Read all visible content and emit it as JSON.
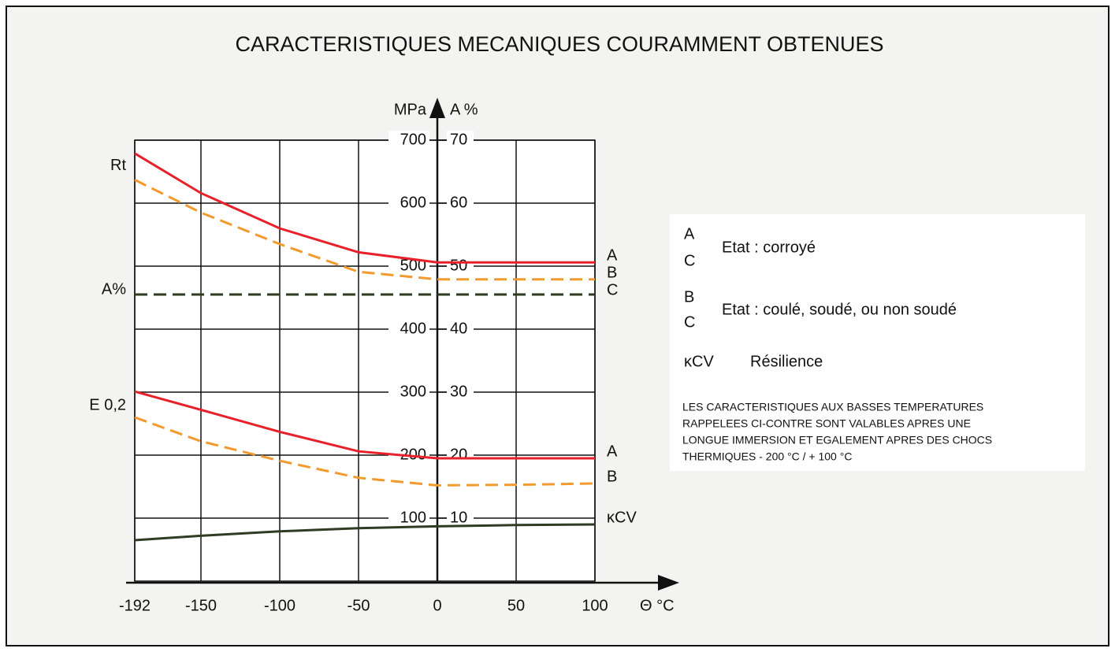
{
  "chart_data": {
    "type": "line",
    "title": "CARACTERISTIQUES MECANIQUES COURAMMENT OBTENUES",
    "y_label": "MPa",
    "y2_label": "A %",
    "x_label": "Θ °C",
    "x": [
      -192,
      -150,
      -100,
      -50,
      0,
      50,
      100
    ],
    "xlim": [
      -192,
      100
    ],
    "xticks": [
      -192,
      -150,
      -100,
      -50,
      0,
      50,
      100
    ],
    "ylim": [
      0,
      700
    ],
    "yticks": [
      100,
      200,
      300,
      400,
      500,
      600,
      700
    ],
    "y2lim": [
      0,
      70
    ],
    "y2ticks": [
      10,
      20,
      30,
      40,
      50,
      60,
      70
    ],
    "grid": true,
    "curve_labels": [
      "Rt",
      "A%",
      "E 0,2"
    ],
    "series": [
      {
        "name": "A",
        "color": "#e8202a",
        "dash": false,
        "values": [
          679,
          616,
          560,
          522,
          506,
          506,
          506
        ]
      },
      {
        "name": "B",
        "color": "#f29a2e",
        "dash": true,
        "values": [
          637,
          585,
          535,
          491,
          479,
          479,
          479
        ]
      },
      {
        "name": "C",
        "color": "#2f3b22",
        "dash": true,
        "axis": "y2",
        "values": [
          45.5,
          45.5,
          45.5,
          45.5,
          45.5,
          45.5,
          45.5
        ]
      },
      {
        "name": "A",
        "color": "#e8202a",
        "dash": false,
        "values": [
          301,
          272,
          237,
          206,
          195,
          195,
          195
        ]
      },
      {
        "name": "B",
        "color": "#f29a2e",
        "dash": true,
        "values": [
          260,
          222,
          191,
          164,
          152,
          153,
          155
        ]
      },
      {
        "name": "κCV",
        "color": "#2f3b22",
        "dash": false,
        "values": [
          65,
          72,
          79,
          84,
          87,
          89,
          90
        ]
      }
    ],
    "legend_box": {
      "items": [
        {
          "codes": [
            "A",
            "C"
          ],
          "text": "Etat : corroyé"
        },
        {
          "codes": [
            "B",
            "C"
          ],
          "text": "Etat : coulé, soudé, ou non soudé"
        },
        {
          "codes": [
            "κCV"
          ],
          "text": "Résilience"
        }
      ],
      "note": [
        "LES CARACTERISTIQUES AUX BASSES TEMPERATURES",
        "RAPPELEES CI-CONTRE SONT VALABLES APRES UNE",
        "LONGUE IMMERSION ET EGALEMENT APRES DES CHOCS",
        "THERMIQUES  - 200 °C / + 100 °C"
      ]
    }
  }
}
